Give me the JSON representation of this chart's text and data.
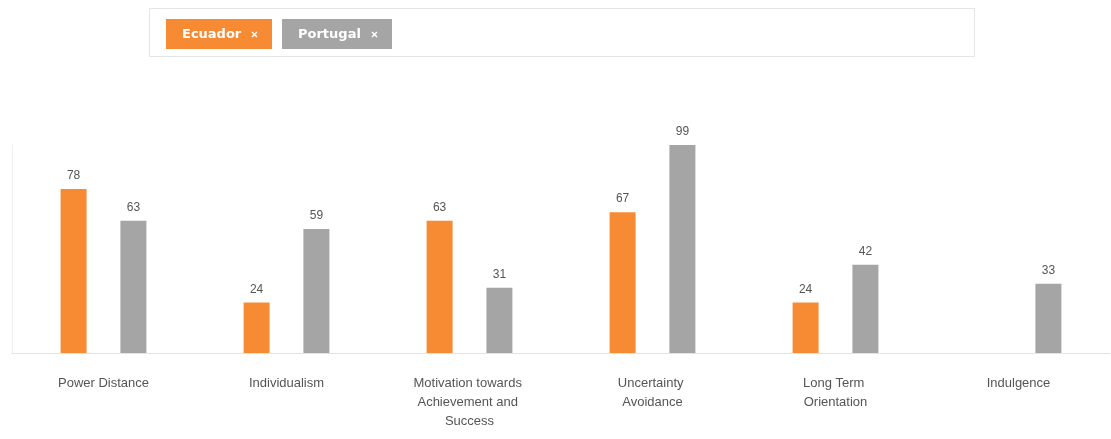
{
  "chart_data": {
    "type": "bar",
    "categories": [
      "Power Distance",
      "Individualism",
      "Motivation towards Achievement and Success",
      "Uncertainty Avoidance",
      "Long Term Orientation",
      "Indulgence"
    ],
    "series": [
      {
        "name": "Ecuador",
        "color": "#f68b33",
        "values": [
          78,
          24,
          63,
          67,
          24,
          null
        ]
      },
      {
        "name": "Portugal",
        "color": "#a5a5a5",
        "values": [
          63,
          59,
          31,
          99,
          42,
          33
        ]
      }
    ],
    "data_labels": true,
    "legend": "top",
    "grid": false
  }
}
